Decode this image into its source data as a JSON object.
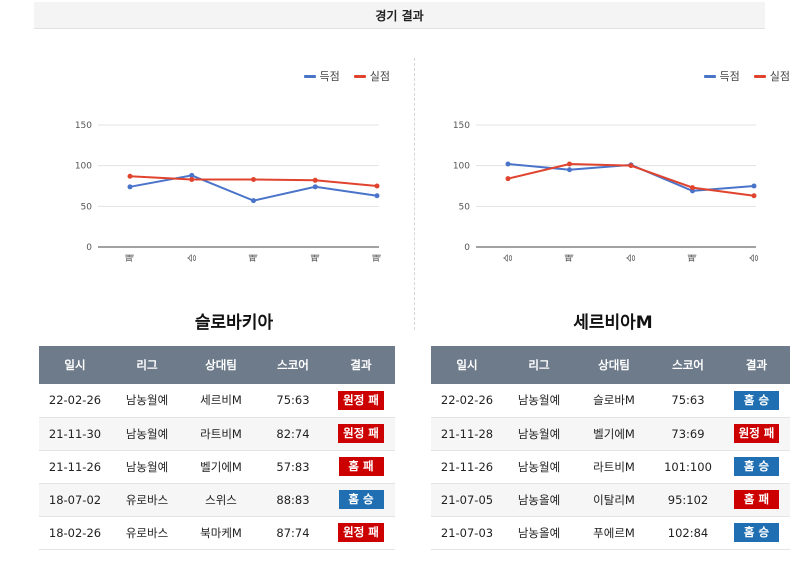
{
  "page_title": "경기 결과",
  "colors": {
    "scored": "#4a74c9",
    "conceded": "#e0442f",
    "loss": "#cc0000",
    "win": "#1f6fb2"
  },
  "panels": [
    {
      "team": "슬로바키아",
      "legend": {
        "scored": "득점",
        "conceded": "실점"
      },
      "table": {
        "headers": [
          "일시",
          "리그",
          "상대팀",
          "스코어",
          "결과"
        ],
        "rows": [
          {
            "date": "22-02-26",
            "league": "남농월예",
            "opponent": "세르비M",
            "score": "75:63",
            "result": "원정 패",
            "result_type": "loss"
          },
          {
            "date": "21-11-30",
            "league": "남농월예",
            "opponent": "라트비M",
            "score": "82:74",
            "result": "원정 패",
            "result_type": "loss"
          },
          {
            "date": "21-11-26",
            "league": "남농월예",
            "opponent": "벨기에M",
            "score": "57:83",
            "result": "홈 패",
            "result_type": "loss"
          },
          {
            "date": "18-07-02",
            "league": "유로바스",
            "opponent": "스위스",
            "score": "88:83",
            "result": "홈 승",
            "result_type": "win"
          },
          {
            "date": "18-02-26",
            "league": "유로바스",
            "opponent": "북마케M",
            "score": "87:74",
            "result": "원정 패",
            "result_type": "loss"
          }
        ]
      }
    },
    {
      "team": "세르비아M",
      "legend": {
        "scored": "득점",
        "conceded": "실점"
      },
      "table": {
        "headers": [
          "일시",
          "리그",
          "상대팀",
          "스코어",
          "결과"
        ],
        "rows": [
          {
            "date": "22-02-26",
            "league": "남농월예",
            "opponent": "슬로바M",
            "score": "75:63",
            "result": "홈 승",
            "result_type": "win"
          },
          {
            "date": "21-11-28",
            "league": "남농월예",
            "opponent": "벨기에M",
            "score": "73:69",
            "result": "원정 패",
            "result_type": "loss"
          },
          {
            "date": "21-11-26",
            "league": "남농월예",
            "opponent": "라트비M",
            "score": "101:100",
            "result": "홈 승",
            "result_type": "win"
          },
          {
            "date": "21-07-05",
            "league": "남농올예",
            "opponent": "이탈리M",
            "score": "95:102",
            "result": "홈 패",
            "result_type": "loss"
          },
          {
            "date": "21-07-03",
            "league": "남농올예",
            "opponent": "푸에르M",
            "score": "102:84",
            "result": "홈 승",
            "result_type": "win"
          }
        ]
      }
    }
  ],
  "chart_data": [
    {
      "type": "line",
      "categories": [
        "패",
        "승",
        "패",
        "패",
        "패"
      ],
      "series": [
        {
          "name": "득점",
          "values": [
            74,
            88,
            57,
            74,
            63
          ]
        },
        {
          "name": "실점",
          "values": [
            87,
            83,
            83,
            82,
            75
          ]
        }
      ],
      "yticks": [
        0,
        50,
        100,
        150
      ],
      "ylim": [
        0,
        150
      ],
      "grid": true,
      "legend": "top-right"
    },
    {
      "type": "line",
      "categories": [
        "승",
        "패",
        "승",
        "패",
        "승"
      ],
      "series": [
        {
          "name": "득점",
          "values": [
            102,
            95,
            101,
            69,
            75
          ]
        },
        {
          "name": "실점",
          "values": [
            84,
            102,
            100,
            73,
            63
          ]
        }
      ],
      "yticks": [
        0,
        50,
        100,
        150
      ],
      "ylim": [
        0,
        150
      ],
      "grid": true,
      "legend": "top-right"
    }
  ]
}
